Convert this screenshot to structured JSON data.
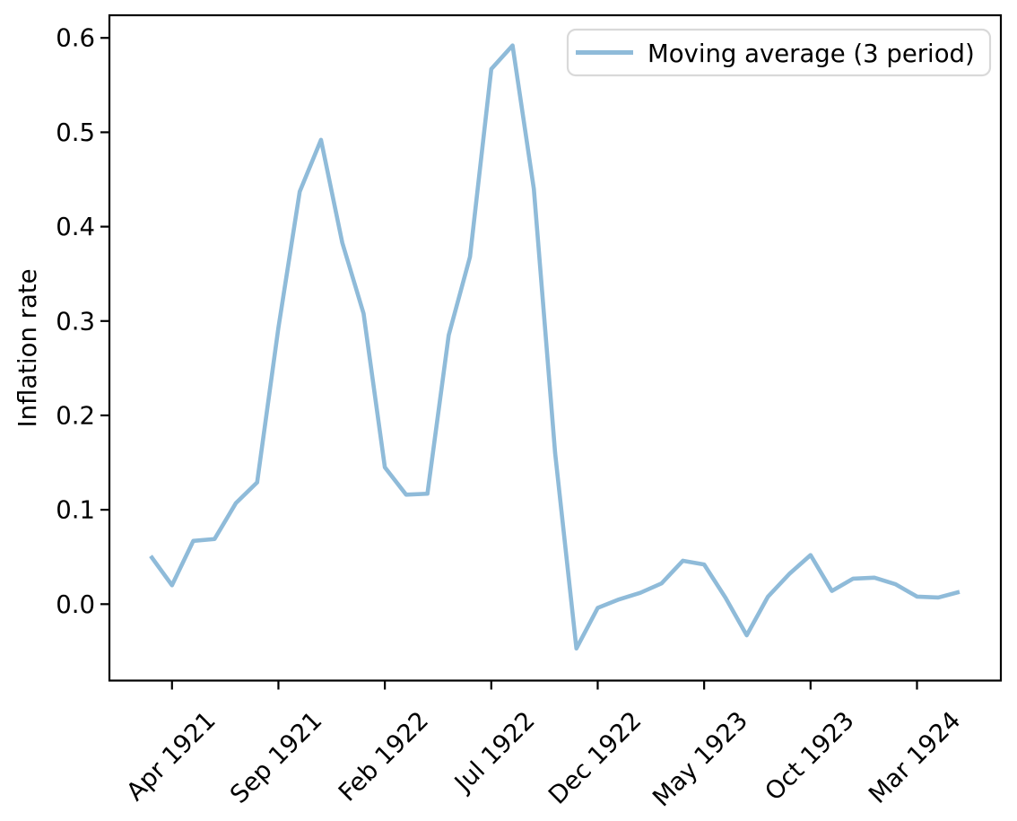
{
  "chart_data": {
    "type": "line",
    "title": "",
    "xlabel": "",
    "ylabel": "Inflation rate",
    "grid": false,
    "legend_position": "upper right",
    "background_color": "#ffffff",
    "axis_color": "#000000",
    "legend_border_color": "#d9d9d9",
    "x": [
      "Mar 1921",
      "Apr 1921",
      "May 1921",
      "Jun 1921",
      "Jul 1921",
      "Aug 1921",
      "Sep 1921",
      "Oct 1921",
      "Nov 1921",
      "Dec 1921",
      "Jan 1922",
      "Feb 1922",
      "Mar 1922",
      "Apr 1922",
      "May 1922",
      "Jun 1922",
      "Jul 1922",
      "Aug 1922",
      "Sep 1922",
      "Oct 1922",
      "Nov 1922",
      "Dec 1922",
      "Jan 1923",
      "Feb 1923",
      "Mar 1923",
      "Apr 1923",
      "May 1923",
      "Jun 1923",
      "Jul 1923",
      "Aug 1923",
      "Sep 1923",
      "Oct 1923",
      "Nov 1923",
      "Dec 1923",
      "Jan 1924",
      "Feb 1924",
      "Mar 1924",
      "Apr 1924",
      "May 1924"
    ],
    "series": [
      {
        "name": "Moving average (3 period)",
        "color": "#8fbbd9",
        "values": [
          0.051,
          0.02,
          0.067,
          0.069,
          0.107,
          0.129,
          0.293,
          0.437,
          0.492,
          0.383,
          0.308,
          0.145,
          0.116,
          0.117,
          0.285,
          0.368,
          0.567,
          0.592,
          0.44,
          0.16,
          -0.047,
          -0.004,
          0.005,
          0.012,
          0.022,
          0.046,
          0.042,
          0.007,
          -0.033,
          0.008,
          0.032,
          0.052,
          0.014,
          0.027,
          0.028,
          0.021,
          0.008,
          0.007,
          0.013
        ]
      }
    ],
    "x_tick_labels": [
      "Apr 1921",
      "Sep 1921",
      "Feb 1922",
      "Jul 1922",
      "Dec 1922",
      "May 1923",
      "Oct 1923",
      "Mar 1924"
    ],
    "x_tick_indices": [
      1,
      6,
      11,
      16,
      21,
      26,
      31,
      36
    ],
    "x_tick_rotation_deg": 45,
    "y_ticks": [
      0.0,
      0.1,
      0.2,
      0.3,
      0.4,
      0.5,
      0.6
    ],
    "ylim": [
      -0.081,
      0.624
    ]
  }
}
